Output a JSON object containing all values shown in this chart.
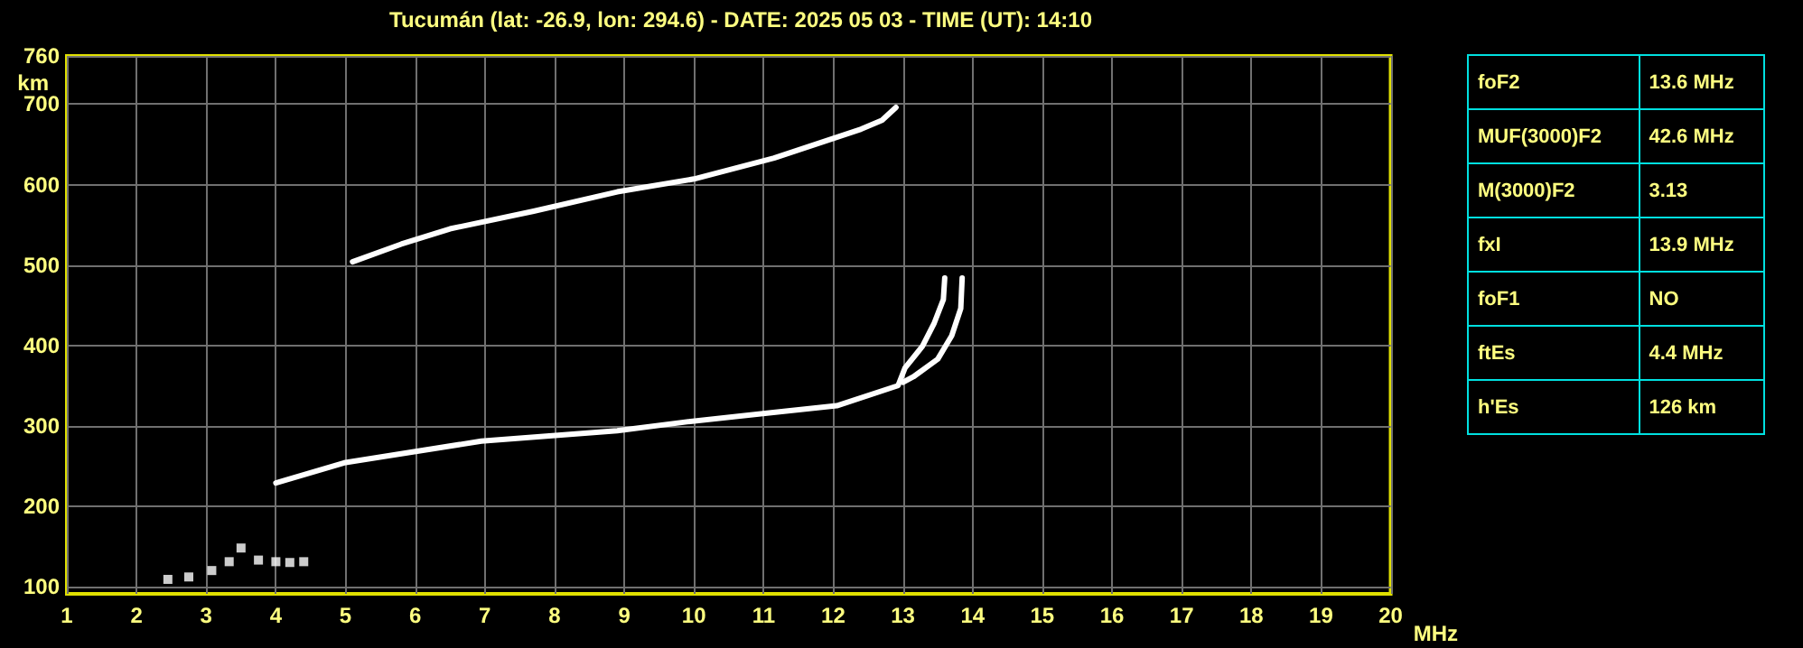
{
  "chart_data": [
    {
      "type": "line",
      "title": "Tucumán (lat: -26.9, lon: 294.6) - DATE: 2025 05 03 - TIME (UT): 14:10",
      "xlabel": "MHz",
      "ylabel": "km",
      "xlim": [
        1,
        20
      ],
      "ylim": [
        91,
        760
      ],
      "xticks": [
        1,
        2,
        3,
        4,
        5,
        6,
        7,
        8,
        9,
        10,
        11,
        12,
        13,
        14,
        15,
        16,
        17,
        18,
        19,
        20
      ],
      "yticks": [
        100,
        200,
        300,
        400,
        500,
        600,
        700,
        760
      ],
      "grid": true,
      "marker": "none",
      "series": [
        {
          "color": "#ffffff",
          "x": [
            4.0,
            4.98,
            6.95,
            8.9,
            9.9,
            11.08,
            12.05,
            12.93,
            13.03,
            13.28,
            13.45,
            13.58,
            13.6
          ],
          "values": [
            229,
            254,
            281,
            294,
            305,
            316,
            325,
            350,
            372,
            399,
            428,
            457,
            484
          ]
        },
        {
          "color": "#ffffff",
          "x": [
            13.0,
            13.15,
            13.5,
            13.7,
            13.83,
            13.85
          ],
          "values": [
            354,
            361,
            383,
            412,
            446,
            484
          ]
        },
        {
          "color": "#ffffff",
          "x": [
            5.1,
            5.8,
            6.5,
            7.7,
            8.9,
            10.0,
            11.15,
            12.4,
            12.7,
            12.9
          ],
          "values": [
            504,
            526,
            545,
            567,
            591,
            607,
            633,
            669,
            680,
            696
          ]
        },
        {
          "type": "scatter",
          "marker": "square",
          "color": "#ffffff",
          "x": [
            2.45,
            2.75,
            3.08,
            3.33,
            3.5,
            3.75,
            4.0,
            4.2,
            4.4
          ],
          "values": [
            109,
            112,
            120,
            131,
            148,
            133,
            131,
            130,
            131
          ]
        }
      ]
    },
    {
      "type": "other",
      "annotations": [
        "foF2",
        "13.6 MHz",
        "MUF(3000)F2",
        "42.6 MHz",
        "M(3000)F2",
        "3.13",
        "fxI",
        "13.9 MHz",
        "foF1",
        "NO",
        "ftEs",
        "4.4 MHz",
        "h'Es",
        "126 km"
      ]
    }
  ]
}
